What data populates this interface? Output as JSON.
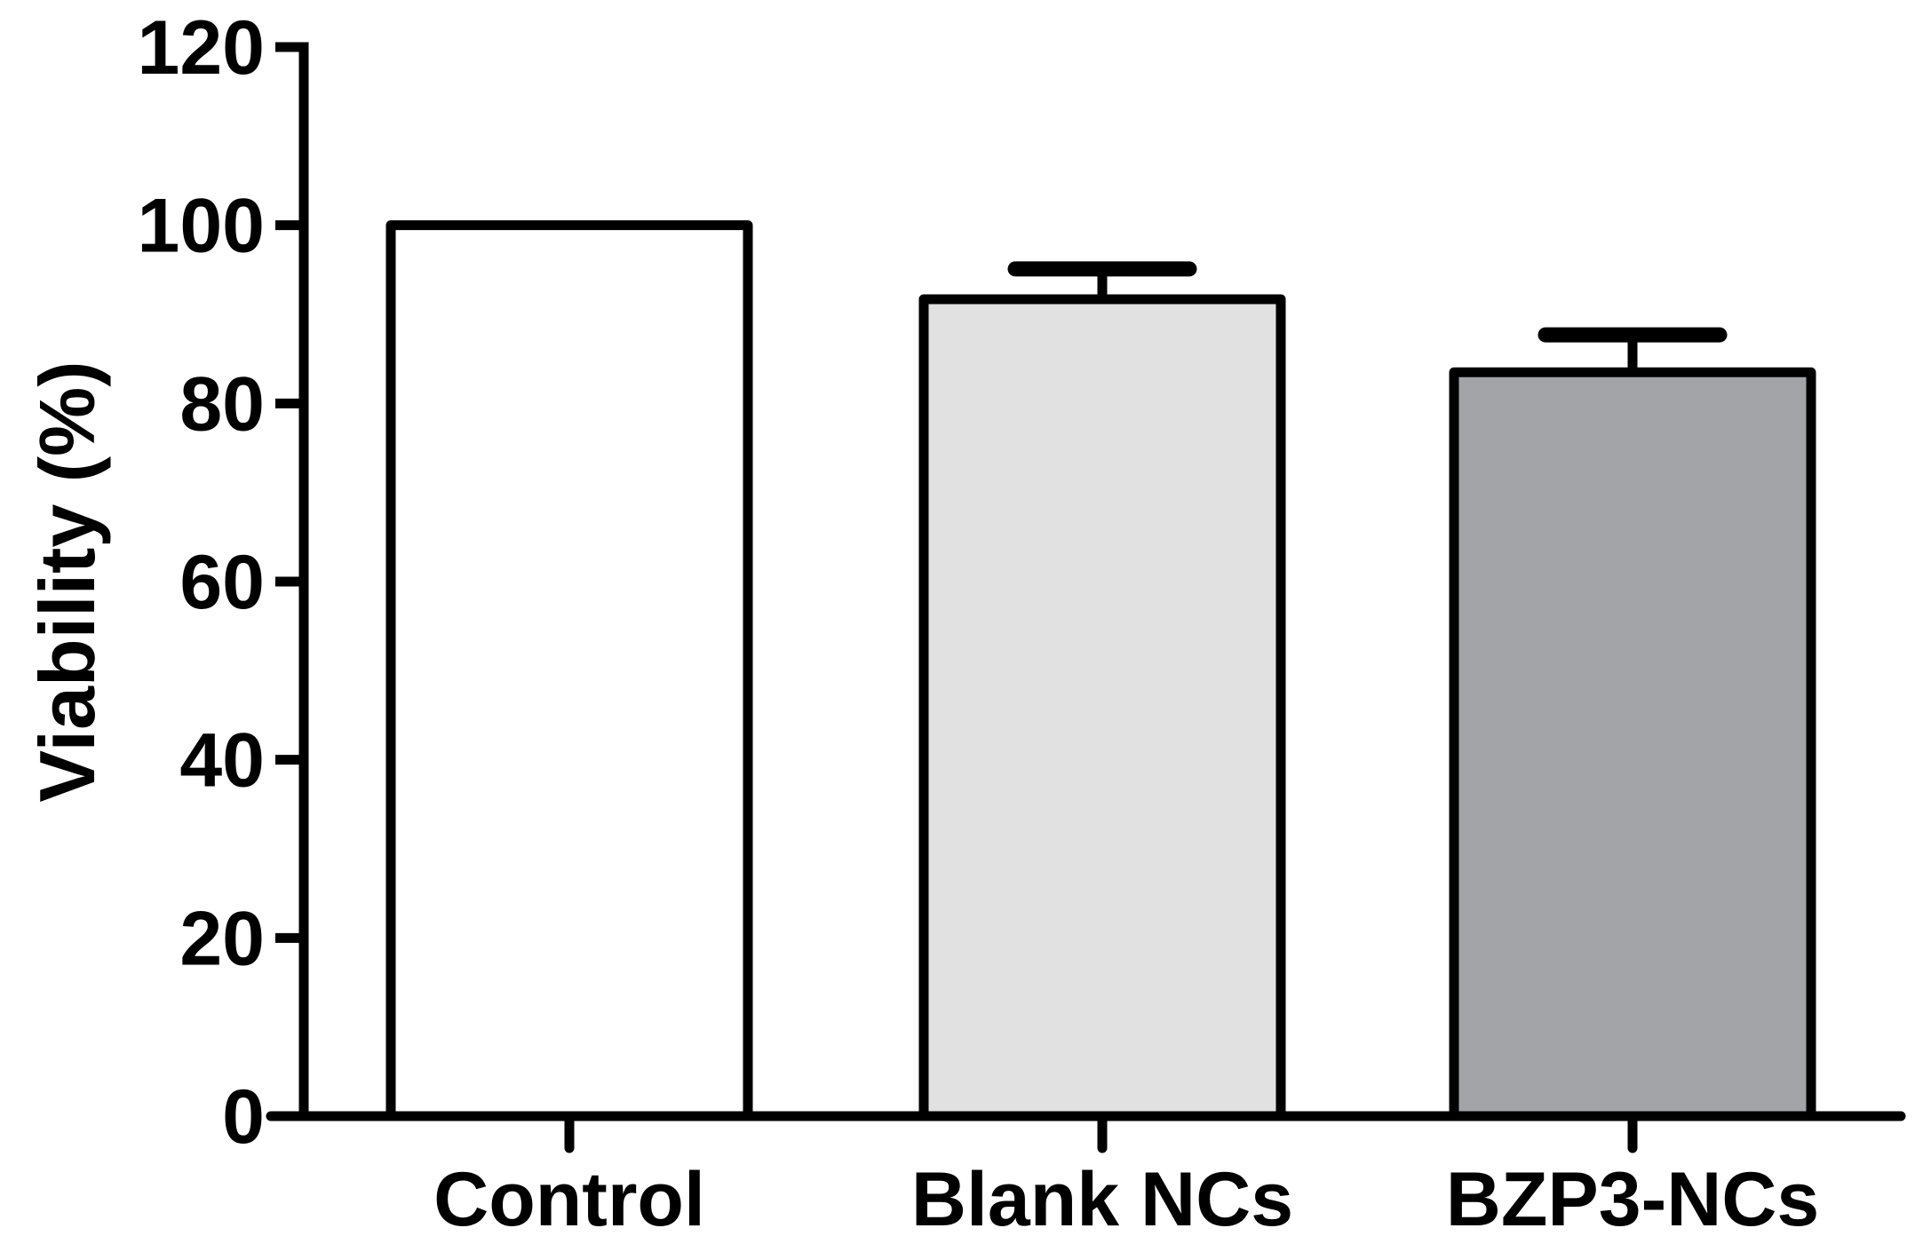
{
  "chart_data": {
    "type": "bar",
    "title": "",
    "xlabel": "",
    "ylabel": "Viability (%)",
    "categories": [
      "Control",
      "Blank NCs",
      "BZP3-NCs"
    ],
    "series": [
      {
        "values": [
          100,
          91.7,
          83.5
        ],
        "error_plus": [
          0,
          3.4,
          4.2
        ],
        "fill_colors": [
          "#ffffff",
          "#e1e1e1",
          "#a3a4a7"
        ]
      }
    ],
    "ylim": [
      0,
      120
    ],
    "yticks": [
      0,
      20,
      40,
      60,
      80,
      100,
      120
    ],
    "grid": false,
    "legend": "none",
    "colors": {
      "stroke": "#000000",
      "background": "#ffffff"
    }
  }
}
